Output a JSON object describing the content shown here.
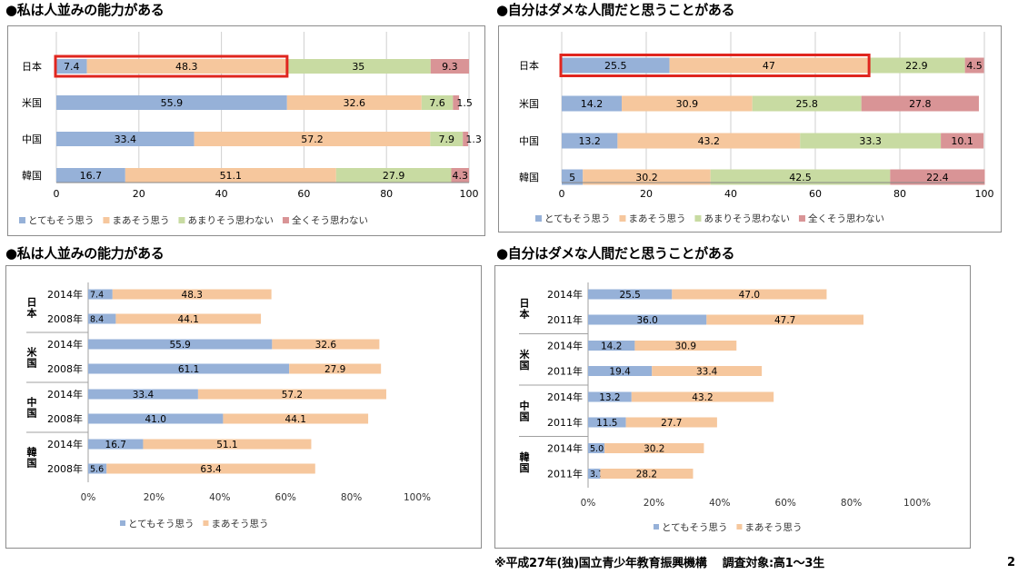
{
  "titles": {
    "chart1": "●私は人並みの能力がある",
    "chart2": "●自分はダメな人間だと思うことがある",
    "chart3": "●私は人並みの能力がある",
    "chart4": "●自分はダメな人間だと思うことがある"
  },
  "footnote": "※平成27年(独)国立青少年教育振興機構　 調査対象:高1～3生",
  "page_number": "2",
  "colors": {
    "very": "#96b1d8",
    "somewhat": "#f6c79d",
    "not_really": "#c8dba2",
    "not_at_all": "#d99496",
    "highlight": "#e0261f"
  },
  "chart_data": [
    {
      "id": "chart1",
      "type": "bar",
      "orientation": "horizontal",
      "stacked": true,
      "categories": [
        "日本",
        "米国",
        "中国",
        "韓国"
      ],
      "series": [
        {
          "name": "とてもそう思う",
          "values": [
            7.4,
            55.9,
            33.4,
            16.7
          ]
        },
        {
          "name": "まあそう思う",
          "values": [
            48.3,
            32.6,
            57.2,
            51.1
          ]
        },
        {
          "name": "あまりそう思わない",
          "values": [
            35,
            7.6,
            7.9,
            27.9
          ]
        },
        {
          "name": "全くそう思わない",
          "values": [
            9.3,
            1.5,
            1.3,
            4.3
          ]
        }
      ],
      "labels": [
        [
          "7.4",
          "48.3",
          "35",
          "9.3"
        ],
        [
          "55.9",
          "32.6",
          "7.6",
          "1.5"
        ],
        [
          "33.4",
          "57.2",
          "7.9",
          "1.3"
        ],
        [
          "16.7",
          "51.1",
          "27.9",
          "4.3"
        ]
      ],
      "xticks": [
        "0",
        "20",
        "40",
        "60",
        "80",
        "100"
      ],
      "xlim": [
        0,
        100
      ],
      "highlight_category": "日本",
      "highlight_series": [
        "とてもそう思う",
        "まあそう思う"
      ],
      "grid": true,
      "legend": "bottom"
    },
    {
      "id": "chart2",
      "type": "bar",
      "orientation": "horizontal",
      "stacked": true,
      "categories": [
        "日本",
        "米国",
        "中国",
        "韓国"
      ],
      "series": [
        {
          "name": "とてもそう思う",
          "values": [
            25.5,
            14.2,
            13.2,
            5
          ]
        },
        {
          "name": "まあそう思う",
          "values": [
            47,
            30.9,
            43.2,
            30.2
          ]
        },
        {
          "name": "あまりそう思わない",
          "values": [
            22.9,
            25.8,
            33.3,
            42.5
          ]
        },
        {
          "name": "全くそう思わない",
          "values": [
            4.5,
            27.8,
            10.1,
            22.4
          ]
        }
      ],
      "labels": [
        [
          "25.5",
          "47",
          "22.9",
          "4.5"
        ],
        [
          "14.2",
          "30.9",
          "25.8",
          "27.8"
        ],
        [
          "13.2",
          "43.2",
          "33.3",
          "10.1"
        ],
        [
          "5",
          "30.2",
          "42.5",
          "22.4"
        ]
      ],
      "xticks": [
        "0",
        "20",
        "40",
        "60",
        "80",
        "100"
      ],
      "xlim": [
        0,
        100
      ],
      "highlight_category": "日本",
      "highlight_series": [
        "とてもそう思う",
        "まあそう思う"
      ],
      "grid": true,
      "legend": "bottom"
    },
    {
      "id": "chart3",
      "type": "bar",
      "orientation": "horizontal",
      "stacked": true,
      "groups": [
        {
          "name": "日本",
          "rows": [
            {
              "year": "2014年",
              "values": [
                7.4,
                48.3
              ]
            },
            {
              "year": "2008年",
              "values": [
                8.4,
                44.1
              ]
            }
          ]
        },
        {
          "name": "米国",
          "rows": [
            {
              "year": "2014年",
              "values": [
                55.9,
                32.6
              ]
            },
            {
              "year": "2008年",
              "values": [
                61.1,
                27.9
              ]
            }
          ]
        },
        {
          "name": "中国",
          "rows": [
            {
              "year": "2014年",
              "values": [
                33.4,
                57.2
              ]
            },
            {
              "year": "2008年",
              "values": [
                41.0,
                44.1
              ]
            }
          ]
        },
        {
          "name": "韓国",
          "rows": [
            {
              "year": "2014年",
              "values": [
                16.7,
                51.1
              ]
            },
            {
              "year": "2008年",
              "values": [
                5.6,
                63.4
              ]
            }
          ]
        }
      ],
      "labels": [
        [
          "7.4",
          "48.3"
        ],
        [
          "8.4",
          "44.1"
        ],
        [
          "55.9",
          "32.6"
        ],
        [
          "61.1",
          "27.9"
        ],
        [
          "33.4",
          "57.2"
        ],
        [
          "41.0",
          "44.1"
        ],
        [
          "16.7",
          "51.1"
        ],
        [
          "5.6",
          "63.4"
        ]
      ],
      "series_names": [
        "とてもそう思う",
        "まあそう思う"
      ],
      "xticks": [
        "0%",
        "20%",
        "40%",
        "60%",
        "80%",
        "100%"
      ],
      "xlim": [
        0,
        100
      ],
      "grid": false,
      "legend": "bottom"
    },
    {
      "id": "chart4",
      "type": "bar",
      "orientation": "horizontal",
      "stacked": true,
      "groups": [
        {
          "name": "日本",
          "rows": [
            {
              "year": "2014年",
              "values": [
                25.5,
                47.0
              ]
            },
            {
              "year": "2011年",
              "values": [
                36.0,
                47.7
              ]
            }
          ]
        },
        {
          "name": "米国",
          "rows": [
            {
              "year": "2014年",
              "values": [
                14.2,
                30.9
              ]
            },
            {
              "year": "2011年",
              "values": [
                19.4,
                33.4
              ]
            }
          ]
        },
        {
          "name": "中国",
          "rows": [
            {
              "year": "2014年",
              "values": [
                13.2,
                43.2
              ]
            },
            {
              "year": "2011年",
              "values": [
                11.5,
                27.7
              ]
            }
          ]
        },
        {
          "name": "韓国",
          "rows": [
            {
              "year": "2014年",
              "values": [
                5.0,
                30.2
              ]
            },
            {
              "year": "2011年",
              "values": [
                3.7,
                28.2
              ]
            }
          ]
        }
      ],
      "labels": [
        [
          "25.5",
          "47.0"
        ],
        [
          "36.0",
          "47.7"
        ],
        [
          "14.2",
          "30.9"
        ],
        [
          "19.4",
          "33.4"
        ],
        [
          "13.2",
          "43.2"
        ],
        [
          "11.5",
          "27.7"
        ],
        [
          "5.0",
          "30.2"
        ],
        [
          "3.7",
          "28.2"
        ]
      ],
      "series_names": [
        "とてもそう思う",
        "まあそう思う"
      ],
      "xticks": [
        "0%",
        "20%",
        "40%",
        "60%",
        "80%",
        "100%"
      ],
      "xlim": [
        0,
        100
      ],
      "grid": false,
      "legend": "bottom"
    }
  ]
}
